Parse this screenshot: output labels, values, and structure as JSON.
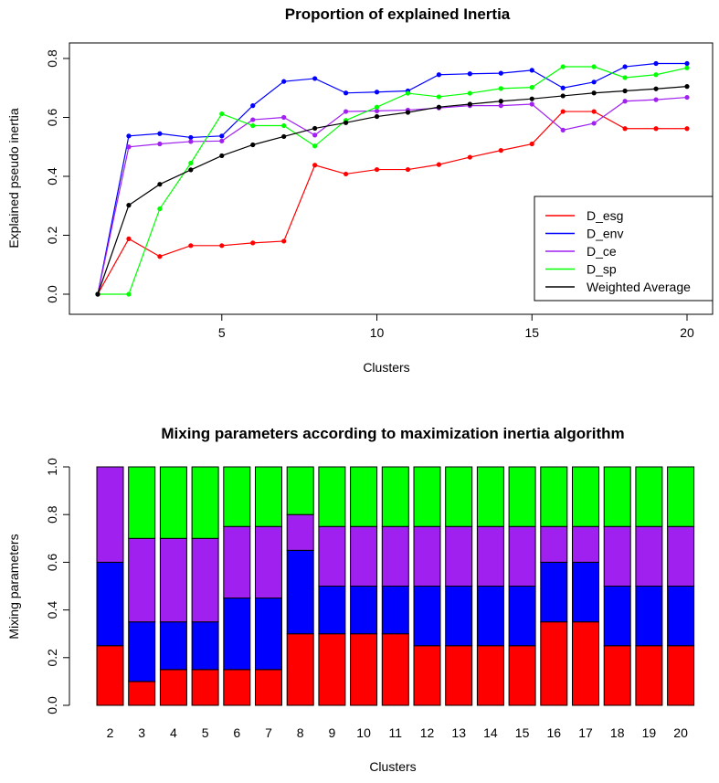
{
  "chart_data": [
    {
      "type": "line",
      "title": "Proportion of explained Inertia",
      "xlabel": "Clusters",
      "ylabel": "Explained pseudo inertia",
      "xlim": [
        1,
        20
      ],
      "ylim": [
        0,
        0.8
      ],
      "x_ticks": [
        5,
        10,
        15,
        20
      ],
      "y_ticks": [
        0.0,
        0.2,
        0.4,
        0.6,
        0.8
      ],
      "y_tick_labels": [
        "0.0",
        "0.2",
        "0.4",
        "0.6",
        "0.8"
      ],
      "grid": false,
      "legend_position": "bottom-right",
      "x": [
        1,
        2,
        3,
        4,
        5,
        6,
        7,
        8,
        9,
        10,
        11,
        12,
        13,
        14,
        15,
        16,
        17,
        18,
        19,
        20
      ],
      "series": [
        {
          "name": "D_esg",
          "color": "#ff0000",
          "values": [
            0,
            0.188,
            0.128,
            0.165,
            0.165,
            0.174,
            0.18,
            0.438,
            0.408,
            0.423,
            0.423,
            0.44,
            0.465,
            0.488,
            0.51,
            0.62,
            0.62,
            0.562,
            0.562,
            0.562
          ]
        },
        {
          "name": "D_env",
          "color": "#0000ff",
          "values": [
            0,
            0.537,
            0.545,
            0.532,
            0.537,
            0.64,
            0.722,
            0.732,
            0.683,
            0.686,
            0.69,
            0.745,
            0.748,
            0.75,
            0.76,
            0.7,
            0.72,
            0.772,
            0.783,
            0.783
          ]
        },
        {
          "name": "D_ce",
          "color": "#a020f0",
          "values": [
            0,
            0.5,
            0.51,
            0.518,
            0.52,
            0.592,
            0.6,
            0.54,
            0.62,
            0.622,
            0.625,
            0.632,
            0.64,
            0.64,
            0.645,
            0.557,
            0.58,
            0.655,
            0.66,
            0.668
          ]
        },
        {
          "name": "D_sp",
          "color": "#00ff00",
          "values": [
            0,
            0,
            0.29,
            0.445,
            0.612,
            0.572,
            0.572,
            0.503,
            0.59,
            0.635,
            0.682,
            0.67,
            0.682,
            0.698,
            0.702,
            0.772,
            0.772,
            0.735,
            0.745,
            0.768
          ]
        },
        {
          "name": "Weighted Average",
          "color": "#000000",
          "values": [
            0,
            0.302,
            0.373,
            0.422,
            0.47,
            0.507,
            0.535,
            0.563,
            0.582,
            0.603,
            0.617,
            0.635,
            0.645,
            0.655,
            0.663,
            0.673,
            0.683,
            0.69,
            0.697,
            0.705
          ]
        }
      ]
    },
    {
      "type": "bar",
      "stacked": true,
      "title": "Mixing parameters according to maximization inertia algorithm",
      "xlabel": "Clusters",
      "ylabel": "Mixing parameters",
      "ylim": [
        0,
        1
      ],
      "y_ticks": [
        0.0,
        0.2,
        0.4,
        0.6,
        0.8,
        1.0
      ],
      "y_tick_labels": [
        "0.0",
        "0.2",
        "0.4",
        "0.6",
        "0.8",
        "1.0"
      ],
      "grid": false,
      "categories": [
        "2",
        "3",
        "4",
        "5",
        "6",
        "7",
        "8",
        "9",
        "10",
        "11",
        "12",
        "13",
        "14",
        "15",
        "16",
        "17",
        "18",
        "19",
        "20"
      ],
      "series": [
        {
          "color": "#ff0000",
          "values": [
            0.25,
            0.1,
            0.15,
            0.15,
            0.15,
            0.15,
            0.3,
            0.3,
            0.3,
            0.3,
            0.25,
            0.25,
            0.25,
            0.25,
            0.35,
            0.35,
            0.25,
            0.25,
            0.25
          ]
        },
        {
          "color": "#0000ff",
          "values": [
            0.35,
            0.25,
            0.2,
            0.2,
            0.3,
            0.3,
            0.35,
            0.2,
            0.2,
            0.2,
            0.25,
            0.25,
            0.25,
            0.25,
            0.25,
            0.25,
            0.25,
            0.25,
            0.25
          ]
        },
        {
          "color": "#a020f0",
          "values": [
            0.4,
            0.35,
            0.35,
            0.35,
            0.3,
            0.3,
            0.15,
            0.25,
            0.25,
            0.25,
            0.25,
            0.25,
            0.25,
            0.25,
            0.15,
            0.15,
            0.25,
            0.25,
            0.25
          ]
        },
        {
          "color": "#00ff00",
          "values": [
            0.0,
            0.3,
            0.3,
            0.3,
            0.25,
            0.25,
            0.2,
            0.25,
            0.25,
            0.25,
            0.25,
            0.25,
            0.25,
            0.25,
            0.25,
            0.25,
            0.25,
            0.25,
            0.25
          ]
        }
      ]
    }
  ]
}
